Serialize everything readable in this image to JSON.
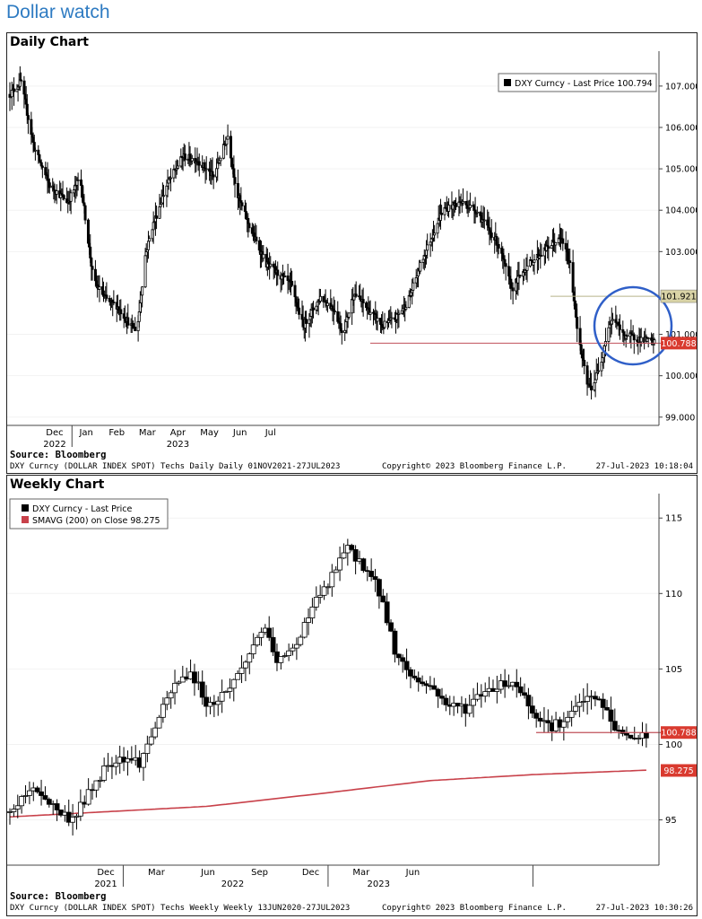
{
  "page_title": "Dollar watch",
  "daily": {
    "title": "Daily Chart",
    "legend": "DXY Curncy - Last Price 100.794",
    "source": "Source: Bloomberg",
    "footer_left": "DXY Curncy (DOLLAR INDEX SPOT) Techs Daily  Daily 01NOV2021-27JUL2023",
    "footer_mid": "Copyright© 2023 Bloomberg Finance L.P.",
    "footer_right": "27-Jul-2023  10:18:04",
    "x_labels": [
      "Dec",
      "Jan",
      "Feb",
      "Mar",
      "Apr",
      "May",
      "Jun",
      "Jul"
    ],
    "year_labels": [
      "2022",
      "2023"
    ],
    "y_ticks": [
      "107.000",
      "106.000",
      "105.000",
      "104.000",
      "103.000",
      "101.000",
      "100.000",
      "99.000"
    ],
    "tag_resistance": "101.921",
    "tag_last": "100.788"
  },
  "weekly": {
    "title": "Weekly Chart",
    "legend_1": "DXY Curncy - Last Price",
    "legend_2": "SMAVG (200)  on Close  98.275",
    "source": "Source: Bloomberg",
    "footer_left": "DXY Curncy (DOLLAR INDEX SPOT) Techs Weekly  Weekly 13JUN2020-27JUL2023",
    "footer_mid": "Copyright© 2023 Bloomberg Finance L.P.",
    "footer_right": "27-Jul-2023  10:30:26",
    "x_labels": [
      "Dec",
      "Mar",
      "Jun",
      "Sep",
      "Dec",
      "Mar",
      "Jun"
    ],
    "year_labels": [
      "2021",
      "2022",
      "2023"
    ],
    "y_ticks": [
      "115",
      "110",
      "105",
      "100",
      "95"
    ],
    "tag_last": "100.788",
    "tag_sma": "98.275"
  },
  "colors": {
    "title": "#2e7bc2",
    "sma": "#c8414a",
    "support": "#c0505a",
    "tag_red": "#d93a2f",
    "tag_tan": "#d9d3a6"
  },
  "chart_data": [
    {
      "type": "candlestick",
      "title": "Daily Chart",
      "series": [
        {
          "name": "DXY Curncy - Last Price",
          "last": 100.794
        }
      ],
      "ylim": [
        98.8,
        107.8
      ],
      "x_range": [
        "2021-11-01",
        "2023-07-27"
      ],
      "anchors": [
        {
          "date": "2021-11-01",
          "close": 106.8
        },
        {
          "date": "2021-11-12",
          "close": 107.1
        },
        {
          "date": "2021-11-25",
          "close": 105.5
        },
        {
          "date": "2021-12-10",
          "close": 104.6
        },
        {
          "date": "2021-12-28",
          "close": 104.2
        },
        {
          "date": "2022-01-09",
          "close": 104.8
        },
        {
          "date": "2022-01-22",
          "close": 102.3
        },
        {
          "date": "2022-02-05",
          "close": 101.8
        },
        {
          "date": "2022-02-14",
          "close": 101.7
        },
        {
          "date": "2022-02-28",
          "close": 101.2
        },
        {
          "date": "2022-03-06",
          "close": 101.1
        },
        {
          "date": "2022-03-14",
          "close": 102.9
        },
        {
          "date": "2022-03-21",
          "close": 103.6
        },
        {
          "date": "2022-04-04",
          "close": 104.6
        },
        {
          "date": "2022-04-20",
          "close": 105.3
        },
        {
          "date": "2022-05-05",
          "close": 105.2
        },
        {
          "date": "2022-05-20",
          "close": 104.8
        },
        {
          "date": "2022-06-03",
          "close": 105.8
        },
        {
          "date": "2022-06-12",
          "close": 104.4
        },
        {
          "date": "2022-06-26",
          "close": 103.5
        },
        {
          "date": "2022-07-11",
          "close": 102.7
        },
        {
          "date": "2022-08-04",
          "close": 102.2
        },
        {
          "date": "2022-08-16",
          "close": 101.2
        },
        {
          "date": "2022-09-02",
          "close": 101.9
        },
        {
          "date": "2022-09-16",
          "close": 101.6
        },
        {
          "date": "2022-09-24",
          "close": 101.0
        },
        {
          "date": "2022-10-05",
          "close": 102.0
        },
        {
          "date": "2022-10-19",
          "close": 101.6
        },
        {
          "date": "2022-11-02",
          "close": 101.2
        },
        {
          "date": "2022-11-15",
          "close": 101.4
        },
        {
          "date": "2022-11-27",
          "close": 101.8
        },
        {
          "date": "2022-12-11",
          "close": 102.8
        },
        {
          "date": "2022-12-31",
          "close": 104.0
        },
        {
          "date": "2023-01-18",
          "close": 104.2
        },
        {
          "date": "2023-02-02",
          "close": 104.0
        },
        {
          "date": "2023-02-23",
          "close": 103.2
        },
        {
          "date": "2023-03-09",
          "close": 102.1
        },
        {
          "date": "2023-03-22",
          "close": 102.6
        },
        {
          "date": "2023-04-04",
          "close": 102.9
        },
        {
          "date": "2023-04-18",
          "close": 103.2
        },
        {
          "date": "2023-04-27",
          "close": 103.3
        },
        {
          "date": "2023-05-05",
          "close": 102.7
        },
        {
          "date": "2023-05-14",
          "close": 100.8
        },
        {
          "date": "2023-05-22",
          "close": 99.8
        },
        {
          "date": "2023-05-27",
          "close": 99.7
        },
        {
          "date": "2023-06-05",
          "close": 100.4
        },
        {
          "date": "2023-06-12",
          "close": 101.2
        },
        {
          "date": "2023-06-18",
          "close": 101.4
        },
        {
          "date": "2023-06-25",
          "close": 101.0
        },
        {
          "date": "2023-07-27",
          "close": 100.8
        }
      ],
      "levels": [
        {
          "name": "resistance",
          "value": 101.921
        },
        {
          "name": "support",
          "value": 100.788
        }
      ]
    },
    {
      "type": "candlestick",
      "title": "Weekly Chart",
      "series": [
        {
          "name": "DXY Curncy - Last Price",
          "last": 100.788
        },
        {
          "name": "SMAVG (200)  on Close",
          "last": 98.275
        }
      ],
      "ylim": [
        92,
        116.5
      ],
      "x_range": [
        "2020-06-13",
        "2023-07-27"
      ],
      "anchors": [
        {
          "date": "2020-06-13",
          "close": 95.5
        },
        {
          "date": "2020-07-08",
          "close": 96.6
        },
        {
          "date": "2020-08-02",
          "close": 97.0
        },
        {
          "date": "2020-09-03",
          "close": 95.7
        },
        {
          "date": "2020-10-01",
          "close": 95.0
        },
        {
          "date": "2020-11-02",
          "close": 96.8
        },
        {
          "date": "2020-12-03",
          "close": 98.7
        },
        {
          "date": "2020-12-31",
          "close": 99.2
        },
        {
          "date": "2021-02-01",
          "close": 98.8
        },
        {
          "date": "2021-03-01",
          "close": 101.4
        },
        {
          "date": "2021-04-04",
          "close": 104.0
        },
        {
          "date": "2021-05-01",
          "close": 104.8
        },
        {
          "date": "2021-06-03",
          "close": 102.5
        },
        {
          "date": "2021-07-05",
          "close": 103.6
        },
        {
          "date": "2021-08-02",
          "close": 105.1
        },
        {
          "date": "2021-09-06",
          "close": 107.8
        },
        {
          "date": "2021-10-04",
          "close": 105.4
        },
        {
          "date": "2021-11-01",
          "close": 106.3
        },
        {
          "date": "2021-12-01",
          "close": 109.0
        },
        {
          "date": "2022-01-03",
          "close": 110.7
        },
        {
          "date": "2022-02-01",
          "close": 113.0
        },
        {
          "date": "2022-03-01",
          "close": 112.1
        },
        {
          "date": "2022-04-03",
          "close": 110.1
        },
        {
          "date": "2022-05-02",
          "close": 106.0
        },
        {
          "date": "2022-06-01",
          "close": 104.4
        },
        {
          "date": "2022-07-05",
          "close": 103.8
        },
        {
          "date": "2022-08-02",
          "close": 102.6
        },
        {
          "date": "2022-09-04",
          "close": 102.4
        },
        {
          "date": "2022-10-01",
          "close": 103.4
        },
        {
          "date": "2022-11-01",
          "close": 104.0
        },
        {
          "date": "2022-12-01",
          "close": 104.1
        },
        {
          "date": "2023-01-01",
          "close": 102.2
        },
        {
          "date": "2023-02-01",
          "close": 101.2
        },
        {
          "date": "2023-03-03",
          "close": 101.6
        },
        {
          "date": "2023-04-01",
          "close": 103.0
        },
        {
          "date": "2023-05-01",
          "close": 102.9
        },
        {
          "date": "2023-06-01",
          "close": 100.8
        },
        {
          "date": "2023-07-01",
          "close": 100.4
        },
        {
          "date": "2023-07-27",
          "close": 100.8
        }
      ],
      "sma_anchors": [
        {
          "date": "2020-06-13",
          "value": 95.2
        },
        {
          "date": "2021-06-01",
          "value": 95.9
        },
        {
          "date": "2022-01-01",
          "value": 96.8
        },
        {
          "date": "2022-07-01",
          "value": 97.6
        },
        {
          "date": "2023-01-01",
          "value": 98.0
        },
        {
          "date": "2023-07-27",
          "value": 98.3
        }
      ],
      "levels": [
        {
          "name": "support",
          "value": 100.788
        }
      ]
    }
  ]
}
